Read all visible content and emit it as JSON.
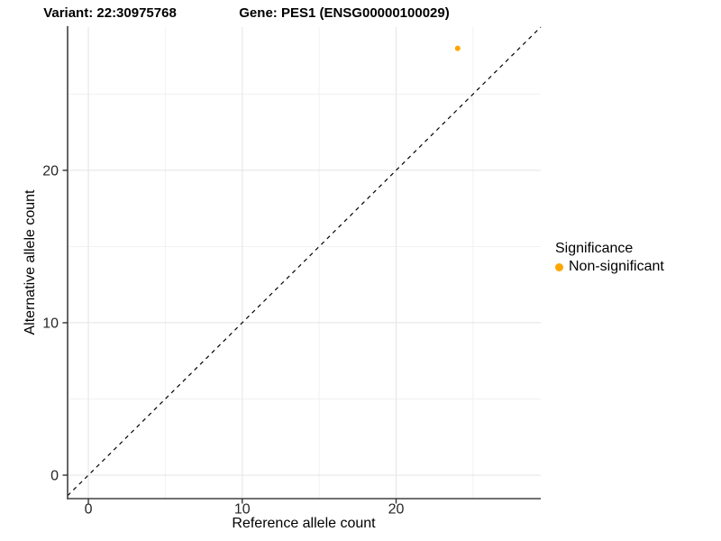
{
  "chart_data": {
    "type": "scatter",
    "title_left": "Variant: 22:30975768",
    "title_right": "Gene: PES1 (ENSG00000100029)",
    "xlabel": "Reference allele count",
    "ylabel": "Alternative allele count",
    "xlim": [
      -1.35,
      29.4
    ],
    "ylim": [
      -1.54,
      29.4
    ],
    "x_major_ticks": [
      0,
      10,
      20
    ],
    "y_major_ticks": [
      0,
      10,
      20
    ],
    "x_minor_ticks": [
      5,
      15,
      25
    ],
    "y_minor_ticks": [
      5,
      15,
      25
    ],
    "grid": "major and minor, light gray on white",
    "identity_line": {
      "equation": "y = x",
      "style": "dashed",
      "color": "#000000"
    },
    "series": [
      {
        "name": "Non-significant",
        "color": "#FFA500",
        "points": [
          {
            "x": 24,
            "y": 28
          }
        ]
      }
    ],
    "point_radius": 3,
    "legend": {
      "position": "right",
      "title": "Significance",
      "entries": [
        {
          "label": "Non-significant",
          "color": "#FFA500"
        }
      ]
    },
    "colors": {
      "background": "#FFFFFF",
      "axis_line": "#404040",
      "tick_mark": "#333333",
      "tick_label": "#262626",
      "grid_major": "#E4E4E4",
      "grid_minor": "#F1F1F1",
      "point": "#FFA500"
    }
  }
}
